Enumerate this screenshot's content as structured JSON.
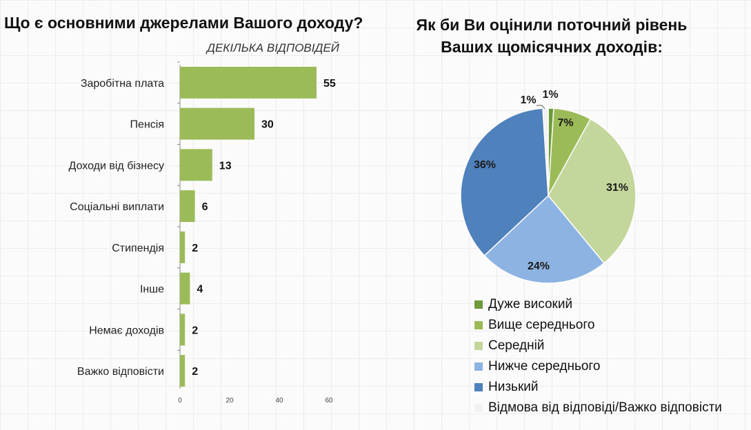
{
  "chart_data": [
    {
      "type": "bar",
      "orientation": "horizontal",
      "title": "Що є основними джерелами Вашого доходу?",
      "subtitle": "ДЕКІЛЬКА ВІДПОВІДЕЙ",
      "categories": [
        "Заробітна плата",
        "Пенсія",
        "Доходи від бізнесу",
        "Соціальні виплати",
        "Стипендія",
        "Інше",
        "Немає доходів",
        "Важко відповісти"
      ],
      "values": [
        55,
        30,
        13,
        6,
        2,
        4,
        2,
        2
      ],
      "xlim": [
        0,
        60
      ],
      "xticks": [
        "0",
        "20",
        "40",
        "60"
      ],
      "color": "#9bbb59"
    },
    {
      "type": "pie",
      "title": "Як би Ви оцінили поточний рівень Ваших щомісячних доходів:",
      "title_lines": [
        "Як би Ви оцінили поточний рівень",
        "Ваших щомісячних доходів:"
      ],
      "slices": [
        {
          "label": "Дуже високий",
          "value": 1,
          "text": "1%",
          "color": "#6f9a3a"
        },
        {
          "label": "Вище середнього",
          "value": 7,
          "text": "7%",
          "color": "#9bbb59"
        },
        {
          "label": "Середній",
          "value": 31,
          "text": "31%",
          "color": "#c3d69b"
        },
        {
          "label": "Нижче середнього",
          "value": 24,
          "text": "24%",
          "color": "#8db3e2"
        },
        {
          "label": "Низький",
          "value": 36,
          "text": "36%",
          "color": "#4f81bd"
        },
        {
          "label": "Відмова від відповіді/Важко відповісти",
          "value": 1,
          "text": "1%",
          "color": "#f2f2f2"
        }
      ],
      "legend_position": "bottom"
    }
  ]
}
